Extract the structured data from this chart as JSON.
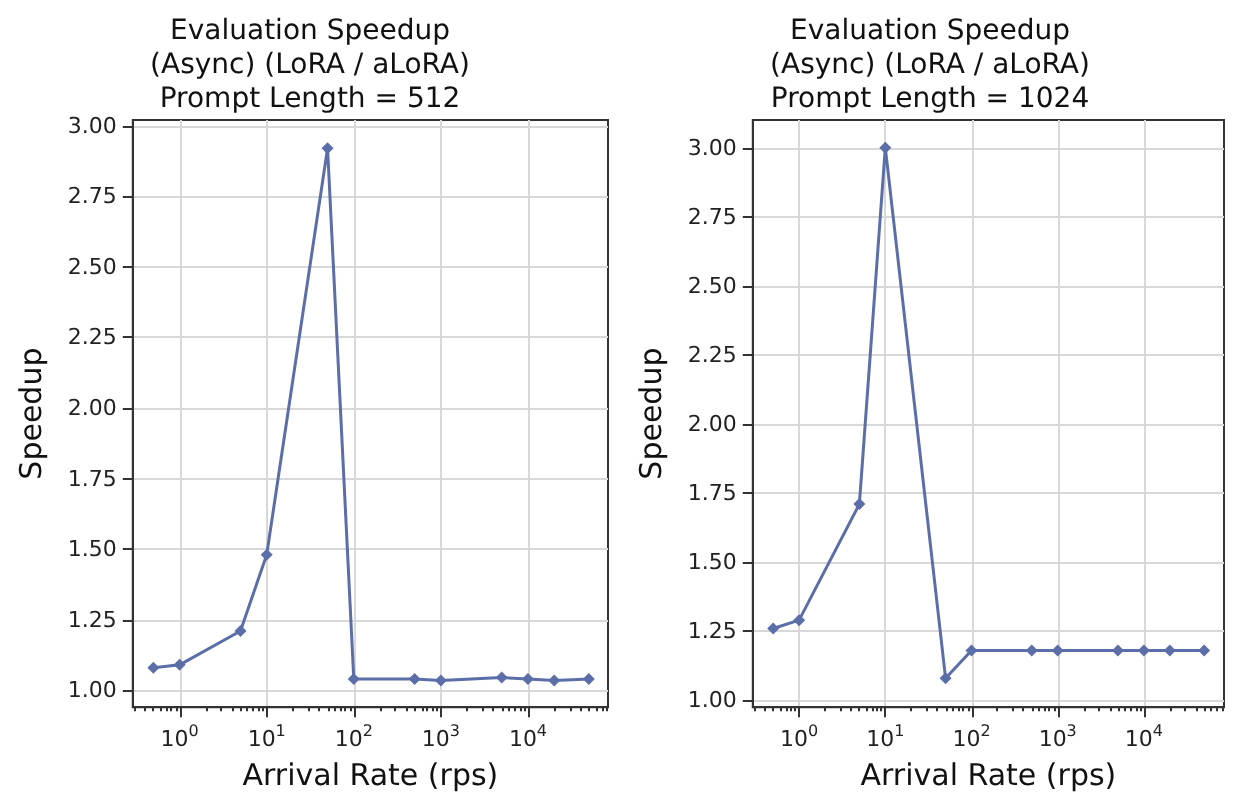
{
  "chart_data": [
    {
      "type": "line",
      "title": "Evaluation Speedup\n(Async) (LoRA / aLoRA)\nPrompt Length = 512",
      "xlabel": "Arrival Rate (rps)",
      "ylabel": "Speedup",
      "x": [
        0.5,
        1,
        5,
        10,
        50,
        100,
        500,
        1000,
        5000,
        10000,
        20000,
        50000
      ],
      "series": [
        {
          "color": "#5b6ea8",
          "values": [
            1.08,
            1.09,
            1.21,
            1.48,
            2.92,
            1.04,
            1.04,
            1.035,
            1.045,
            1.04,
            1.035,
            1.04
          ]
        }
      ],
      "log": "x",
      "xlim": [
        0.29,
        83000
      ],
      "xticks": [
        {
          "value": 1,
          "label": "10$^{0}$"
        },
        {
          "value": 10,
          "label": "10$^{1}$"
        },
        {
          "value": 100,
          "label": "10$^{2}$"
        },
        {
          "value": 1000,
          "label": "10$^{3}$"
        },
        {
          "value": 10000,
          "label": "10$^{4}$"
        }
      ],
      "ylim": [
        0.94,
        3.02
      ],
      "yticks": [
        {
          "value": 1,
          "label": "1.00"
        },
        {
          "value": 1.25,
          "label": "1.25"
        },
        {
          "value": 1.5,
          "label": "1.50"
        },
        {
          "value": 1.75,
          "label": "1.75"
        },
        {
          "value": 2,
          "label": "2.00"
        },
        {
          "value": 2.25,
          "label": "2.25"
        },
        {
          "value": 2.5,
          "label": "2.50"
        },
        {
          "value": 2.75,
          "label": "2.75"
        },
        {
          "value": 3,
          "label": "3.00"
        }
      ],
      "grid": true,
      "marker": "diamond",
      "line_style": "solid"
    },
    {
      "type": "line",
      "title": "Evaluation Speedup\n(Async) (LoRA / aLoRA)\nPrompt Length = 1024",
      "xlabel": "Arrival Rate (rps)",
      "ylabel": "Speedup",
      "x": [
        0.5,
        1,
        5,
        10,
        50,
        100,
        500,
        1000,
        5000,
        10000,
        20000,
        50000
      ],
      "series": [
        {
          "color": "#5b6ea8",
          "values": [
            1.26,
            1.29,
            1.71,
            3.0,
            1.08,
            1.18,
            1.18,
            1.18,
            1.18,
            1.18,
            1.18,
            1.18
          ]
        }
      ],
      "log": "x",
      "xlim": [
        0.29,
        85000
      ],
      "xticks": [
        {
          "value": 1,
          "label": "10$^{0}$"
        },
        {
          "value": 10,
          "label": "10$^{1}$"
        },
        {
          "value": 100,
          "label": "10$^{2}$"
        },
        {
          "value": 1000,
          "label": "10$^{3}$"
        },
        {
          "value": 10000,
          "label": "10$^{4}$"
        }
      ],
      "ylim": [
        0.975,
        3.1
      ],
      "yticks": [
        {
          "value": 1,
          "label": "1.00"
        },
        {
          "value": 1.25,
          "label": "1.25"
        },
        {
          "value": 1.5,
          "label": "1.50"
        },
        {
          "value": 1.75,
          "label": "1.75"
        },
        {
          "value": 2,
          "label": "2.00"
        },
        {
          "value": 2.25,
          "label": "2.25"
        },
        {
          "value": 2.5,
          "label": "2.50"
        },
        {
          "value": 2.75,
          "label": "2.75"
        },
        {
          "value": 3,
          "label": "3.00"
        }
      ],
      "grid": true,
      "marker": "diamond",
      "line_style": "solid"
    }
  ]
}
